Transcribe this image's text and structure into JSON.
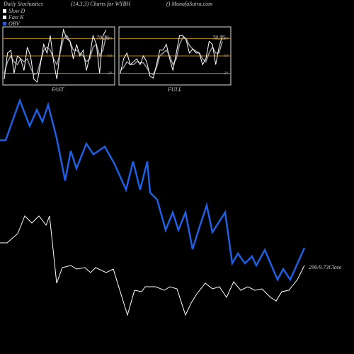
{
  "chart_data": [
    {
      "type": "stoch",
      "title": "Daily Stochastics",
      "subtitle": "(14,3,3) Charts for WYBH",
      "source": "() MunafaSutra.com",
      "panel_label": "FAST",
      "last_label": "79.26",
      "ylim": [
        0,
        100
      ],
      "yticks": [
        20,
        50,
        80
      ],
      "series": [
        {
          "name": "Slow D",
          "color": "#999999",
          "values": [
            20,
            40,
            50,
            40,
            35,
            45,
            40,
            45,
            30,
            18,
            20,
            40,
            60,
            65,
            60,
            45,
            35,
            55,
            80,
            85,
            75,
            60,
            60,
            55,
            50,
            40,
            45,
            65,
            70,
            50,
            60,
            85
          ]
        },
        {
          "name": "Fast K",
          "color": "#ffffff",
          "values": [
            10,
            55,
            60,
            20,
            50,
            45,
            25,
            65,
            50,
            10,
            5,
            35,
            70,
            55,
            85,
            40,
            10,
            60,
            95,
            80,
            75,
            45,
            70,
            50,
            60,
            25,
            50,
            85,
            70,
            20,
            85,
            95
          ]
        }
      ]
    },
    {
      "type": "stoch",
      "panel_label": "FULL",
      "last_label": "78.55",
      "ylim": [
        0,
        100
      ],
      "yticks": [
        20,
        50,
        80
      ],
      "series": [
        {
          "name": "Slow D",
          "color": "#999999",
          "values": [
            25,
            30,
            40,
            35,
            35,
            40,
            38,
            38,
            30,
            20,
            18,
            30,
            50,
            55,
            60,
            50,
            35,
            45,
            70,
            82,
            80,
            68,
            62,
            58,
            55,
            45,
            40,
            55,
            65,
            55,
            55,
            75
          ]
        },
        {
          "name": "Fast K",
          "color": "#ffffff",
          "values": [
            20,
            45,
            55,
            35,
            40,
            45,
            35,
            50,
            40,
            15,
            12,
            35,
            60,
            60,
            70,
            45,
            25,
            55,
            85,
            85,
            78,
            55,
            62,
            55,
            55,
            35,
            45,
            75,
            70,
            35,
            65,
            85
          ]
        }
      ]
    },
    {
      "type": "main",
      "close_label": "296/9.73Close",
      "xlim": [
        0,
        500
      ],
      "ylim": [
        0,
        500
      ],
      "series": [
        {
          "name": "OBV",
          "color": "#1f5fe0",
          "x": [
            0,
            8,
            28,
            42,
            52,
            60,
            68,
            80,
            92,
            100,
            108,
            122,
            132,
            148,
            162,
            178,
            188,
            198,
            208,
            212,
            222,
            234,
            244,
            252,
            262,
            272,
            282,
            292,
            300,
            318,
            328,
            336,
            346,
            356,
            362,
            374,
            392,
            400,
            410,
            430
          ],
          "values": [
            302,
            302,
            358,
            322,
            345,
            328,
            352,
            305,
            245,
            287,
            262,
            297,
            282,
            293,
            268,
            232,
            272,
            232,
            272,
            228,
            218,
            175,
            200,
            175,
            200,
            148,
            180,
            210,
            172,
            200,
            128,
            142,
            128,
            138,
            125,
            147,
            105,
            120,
            105,
            150
          ]
        },
        {
          "color": "#ffffff",
          "x": [
            0,
            10,
            25,
            35,
            45,
            55,
            65,
            70,
            80,
            88,
            100,
            108,
            120,
            128,
            135,
            150,
            160,
            180,
            190,
            200,
            205,
            220,
            232,
            240,
            250,
            262,
            270,
            278,
            290,
            300,
            310,
            320,
            330,
            340,
            350,
            360,
            370,
            382,
            390,
            398,
            408,
            420,
            430
          ],
          "values": [
            157,
            157,
            170,
            195,
            185,
            195,
            182,
            195,
            100,
            122,
            125,
            120,
            122,
            115,
            122,
            115,
            120,
            55,
            90,
            88,
            95,
            95,
            90,
            95,
            92,
            55,
            72,
            85,
            100,
            92,
            95,
            80,
            102,
            90,
            95,
            90,
            92,
            80,
            75,
            88,
            90,
            105,
            125
          ]
        }
      ]
    }
  ]
}
